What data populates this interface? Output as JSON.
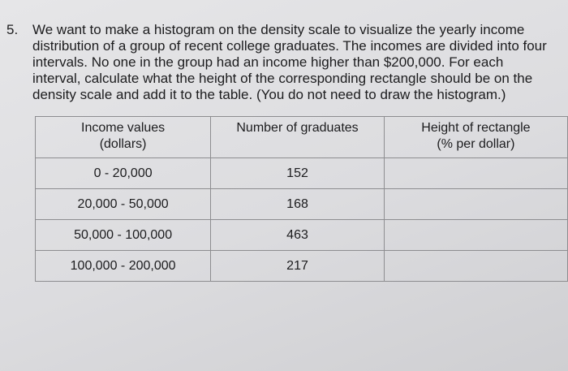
{
  "question": {
    "number": "5.",
    "lines": [
      "We want to make a histogram on the density scale to visualize the yearly income",
      "distribution of a group of recent college graduates. The incomes are divided into four",
      "intervals. No one in the group had an income higher than $200,000. For each",
      "interval, calculate what the height of the corresponding rectangle should be on the",
      "density scale and add it to the table. (You do not need to draw the histogram.)"
    ]
  },
  "table": {
    "headers": [
      [
        "Income values",
        "(dollars)"
      ],
      [
        "Number of graduates"
      ],
      [
        "Height of rectangle",
        "(% per dollar)"
      ]
    ],
    "rows": [
      [
        "0 - 20,000",
        "152"
      ],
      [
        "20,000 - 50,000",
        "168"
      ],
      [
        "50,000 - 100,000",
        "463"
      ],
      [
        "100,000 - 200,000",
        "217"
      ]
    ]
  }
}
